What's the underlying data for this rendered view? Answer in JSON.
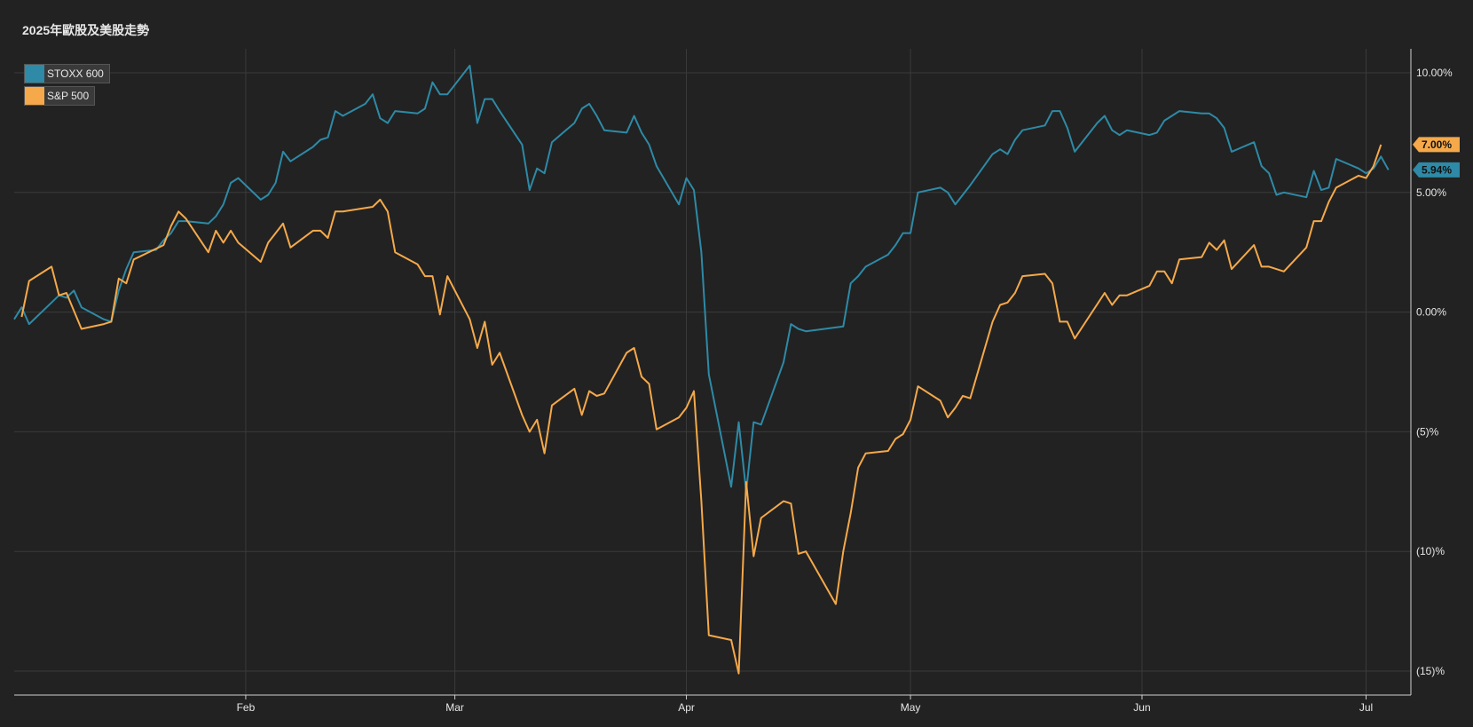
{
  "chart_data": {
    "type": "line",
    "title": "2025年歐股及美股走勢",
    "xlabel": "",
    "ylabel": "",
    "ylim": [
      -16,
      11
    ],
    "grid": true,
    "legend_position": "top-left",
    "x_tick_labels": [
      "Feb",
      "Mar",
      "Apr",
      "May",
      "Jun",
      "Jul"
    ],
    "x_tick_dates": [
      "2025-02-01",
      "2025-03-01",
      "2025-04-01",
      "2025-05-01",
      "2025-06-01",
      "2025-07-01"
    ],
    "y_ticks": [
      {
        "value": 10,
        "label": "10.00%"
      },
      {
        "value": 5,
        "label": "5.00%"
      },
      {
        "value": 0,
        "label": "0.00%"
      },
      {
        "value": -5,
        "label": "(5)%"
      },
      {
        "value": -10,
        "label": "(10)%"
      },
      {
        "value": -15,
        "label": "(15)%"
      }
    ],
    "series": [
      {
        "name": "STOXX 600",
        "color": "#2e8aa6",
        "end_label": "5.94%",
        "x": [
          "2025-01-01",
          "2025-01-02",
          "2025-01-03",
          "2025-01-06",
          "2025-01-07",
          "2025-01-08",
          "2025-01-09",
          "2025-01-10",
          "2025-01-13",
          "2025-01-14",
          "2025-01-15",
          "2025-01-16",
          "2025-01-17",
          "2025-01-20",
          "2025-01-21",
          "2025-01-22",
          "2025-01-23",
          "2025-01-24",
          "2025-01-27",
          "2025-01-28",
          "2025-01-29",
          "2025-01-30",
          "2025-01-31",
          "2025-02-03",
          "2025-02-04",
          "2025-02-05",
          "2025-02-06",
          "2025-02-07",
          "2025-02-10",
          "2025-02-11",
          "2025-02-12",
          "2025-02-13",
          "2025-02-14",
          "2025-02-17",
          "2025-02-18",
          "2025-02-19",
          "2025-02-20",
          "2025-02-21",
          "2025-02-24",
          "2025-02-25",
          "2025-02-26",
          "2025-02-27",
          "2025-02-28",
          "2025-03-03",
          "2025-03-04",
          "2025-03-05",
          "2025-03-06",
          "2025-03-07",
          "2025-03-10",
          "2025-03-11",
          "2025-03-12",
          "2025-03-13",
          "2025-03-14",
          "2025-03-17",
          "2025-03-18",
          "2025-03-19",
          "2025-03-20",
          "2025-03-21",
          "2025-03-24",
          "2025-03-25",
          "2025-03-26",
          "2025-03-27",
          "2025-03-28",
          "2025-03-31",
          "2025-04-01",
          "2025-04-02",
          "2025-04-03",
          "2025-04-04",
          "2025-04-07",
          "2025-04-08",
          "2025-04-09",
          "2025-04-10",
          "2025-04-11",
          "2025-04-14",
          "2025-04-15",
          "2025-04-16",
          "2025-04-17",
          "2025-04-22",
          "2025-04-23",
          "2025-04-24",
          "2025-04-25",
          "2025-04-28",
          "2025-04-29",
          "2025-04-30",
          "2025-05-01",
          "2025-05-02",
          "2025-05-05",
          "2025-05-06",
          "2025-05-07",
          "2025-05-08",
          "2025-05-09",
          "2025-05-12",
          "2025-05-13",
          "2025-05-14",
          "2025-05-15",
          "2025-05-16",
          "2025-05-19",
          "2025-05-20",
          "2025-05-21",
          "2025-05-22",
          "2025-05-23",
          "2025-05-26",
          "2025-05-27",
          "2025-05-28",
          "2025-05-29",
          "2025-05-30",
          "2025-06-02",
          "2025-06-03",
          "2025-06-04",
          "2025-06-05",
          "2025-06-06",
          "2025-06-09",
          "2025-06-10",
          "2025-06-11",
          "2025-06-12",
          "2025-06-13",
          "2025-06-16",
          "2025-06-17",
          "2025-06-18",
          "2025-06-19",
          "2025-06-20",
          "2025-06-23",
          "2025-06-24",
          "2025-06-25",
          "2025-06-26",
          "2025-06-27",
          "2025-06-30",
          "2025-07-01",
          "2025-07-02",
          "2025-07-03",
          "2025-07-04"
        ],
        "values": [
          -0.3,
          0.2,
          -0.5,
          0.4,
          0.7,
          0.6,
          0.9,
          0.2,
          -0.3,
          -0.4,
          0.9,
          1.8,
          2.5,
          2.6,
          3.0,
          3.3,
          3.8,
          3.8,
          3.7,
          4.0,
          4.5,
          5.4,
          5.6,
          4.7,
          4.9,
          5.4,
          6.7,
          6.3,
          6.9,
          7.2,
          7.3,
          8.4,
          8.2,
          8.7,
          9.1,
          8.1,
          7.9,
          8.4,
          8.3,
          8.5,
          9.6,
          9.1,
          9.1,
          10.3,
          7.9,
          8.9,
          8.9,
          8.4,
          7.0,
          5.1,
          6.0,
          5.8,
          7.1,
          7.9,
          8.5,
          8.7,
          8.2,
          7.6,
          7.5,
          8.2,
          7.5,
          7.0,
          6.1,
          4.5,
          5.6,
          5.1,
          2.5,
          -2.6,
          -7.3,
          -4.6,
          -7.5,
          -4.6,
          -4.7,
          -2.1,
          -0.5,
          -0.7,
          -0.8,
          -0.6,
          1.2,
          1.5,
          1.9,
          2.4,
          2.8,
          3.3,
          3.3,
          5.0,
          5.2,
          5.0,
          4.5,
          4.9,
          5.3,
          6.6,
          6.8,
          6.6,
          7.2,
          7.6,
          7.8,
          8.4,
          8.4,
          7.7,
          6.7,
          7.9,
          8.2,
          7.6,
          7.4,
          7.6,
          7.4,
          7.5,
          8.0,
          8.2,
          8.4,
          8.3,
          8.3,
          8.1,
          7.7,
          6.7,
          7.1,
          6.1,
          5.8,
          4.9,
          5.0,
          4.8,
          5.9,
          5.1,
          5.2,
          6.4,
          6.0,
          5.8,
          6.0,
          6.5,
          5.94
        ]
      },
      {
        "name": "S&P 500",
        "color": "#f5a94a",
        "end_label": "7.00%",
        "x": [
          "2025-01-02",
          "2025-01-03",
          "2025-01-06",
          "2025-01-07",
          "2025-01-08",
          "2025-01-10",
          "2025-01-13",
          "2025-01-14",
          "2025-01-15",
          "2025-01-16",
          "2025-01-17",
          "2025-01-21",
          "2025-01-22",
          "2025-01-23",
          "2025-01-24",
          "2025-01-27",
          "2025-01-28",
          "2025-01-29",
          "2025-01-30",
          "2025-01-31",
          "2025-02-03",
          "2025-02-04",
          "2025-02-05",
          "2025-02-06",
          "2025-02-07",
          "2025-02-10",
          "2025-02-11",
          "2025-02-12",
          "2025-02-13",
          "2025-02-14",
          "2025-02-18",
          "2025-02-19",
          "2025-02-20",
          "2025-02-21",
          "2025-02-24",
          "2025-02-25",
          "2025-02-26",
          "2025-02-27",
          "2025-02-28",
          "2025-03-03",
          "2025-03-04",
          "2025-03-05",
          "2025-03-06",
          "2025-03-07",
          "2025-03-10",
          "2025-03-11",
          "2025-03-12",
          "2025-03-13",
          "2025-03-14",
          "2025-03-17",
          "2025-03-18",
          "2025-03-19",
          "2025-03-20",
          "2025-03-21",
          "2025-03-24",
          "2025-03-25",
          "2025-03-26",
          "2025-03-27",
          "2025-03-28",
          "2025-03-31",
          "2025-04-01",
          "2025-04-02",
          "2025-04-03",
          "2025-04-04",
          "2025-04-07",
          "2025-04-08",
          "2025-04-09",
          "2025-04-10",
          "2025-04-11",
          "2025-04-14",
          "2025-04-15",
          "2025-04-16",
          "2025-04-17",
          "2025-04-21",
          "2025-04-22",
          "2025-04-23",
          "2025-04-24",
          "2025-04-25",
          "2025-04-28",
          "2025-04-29",
          "2025-04-30",
          "2025-05-01",
          "2025-05-02",
          "2025-05-05",
          "2025-05-06",
          "2025-05-07",
          "2025-05-08",
          "2025-05-09",
          "2025-05-12",
          "2025-05-13",
          "2025-05-14",
          "2025-05-15",
          "2025-05-16",
          "2025-05-19",
          "2025-05-20",
          "2025-05-21",
          "2025-05-22",
          "2025-05-23",
          "2025-05-27",
          "2025-05-28",
          "2025-05-29",
          "2025-05-30",
          "2025-06-02",
          "2025-06-03",
          "2025-06-04",
          "2025-06-05",
          "2025-06-06",
          "2025-06-09",
          "2025-06-10",
          "2025-06-11",
          "2025-06-12",
          "2025-06-13",
          "2025-06-16",
          "2025-06-17",
          "2025-06-18",
          "2025-06-20",
          "2025-06-23",
          "2025-06-24",
          "2025-06-25",
          "2025-06-26",
          "2025-06-27",
          "2025-06-30",
          "2025-07-01",
          "2025-07-02",
          "2025-07-03"
        ],
        "values": [
          -0.2,
          1.3,
          1.9,
          0.7,
          0.8,
          -0.7,
          -0.5,
          -0.4,
          1.4,
          1.2,
          2.2,
          2.8,
          3.6,
          4.2,
          3.9,
          2.5,
          3.4,
          2.9,
          3.4,
          2.9,
          2.1,
          2.9,
          3.3,
          3.7,
          2.7,
          3.4,
          3.4,
          3.1,
          4.2,
          4.2,
          4.4,
          4.7,
          4.2,
          2.5,
          2.0,
          1.5,
          1.5,
          -0.1,
          1.5,
          -0.3,
          -1.5,
          -0.4,
          -2.2,
          -1.7,
          -4.3,
          -5.0,
          -4.5,
          -5.9,
          -3.9,
          -3.2,
          -4.3,
          -3.3,
          -3.5,
          -3.4,
          -1.7,
          -1.5,
          -2.7,
          -3.0,
          -4.9,
          -4.4,
          -4.0,
          -3.3,
          -7.9,
          -13.5,
          -13.7,
          -15.1,
          -7.1,
          -10.2,
          -8.6,
          -7.9,
          -8.0,
          -10.1,
          -10.0,
          -12.2,
          -10.0,
          -8.4,
          -6.5,
          -5.9,
          -5.8,
          -5.3,
          -5.1,
          -4.5,
          -3.1,
          -3.7,
          -4.4,
          -4.0,
          -3.5,
          -3.6,
          -0.4,
          0.3,
          0.4,
          0.8,
          1.5,
          1.6,
          1.2,
          -0.4,
          -0.4,
          -1.1,
          0.8,
          0.3,
          0.7,
          0.7,
          1.1,
          1.7,
          1.7,
          1.2,
          2.2,
          2.3,
          2.9,
          2.6,
          3.0,
          1.8,
          2.8,
          1.9,
          1.9,
          1.7,
          2.7,
          3.8,
          3.8,
          4.6,
          5.2,
          5.7,
          5.6,
          6.1,
          7.0
        ]
      }
    ]
  }
}
